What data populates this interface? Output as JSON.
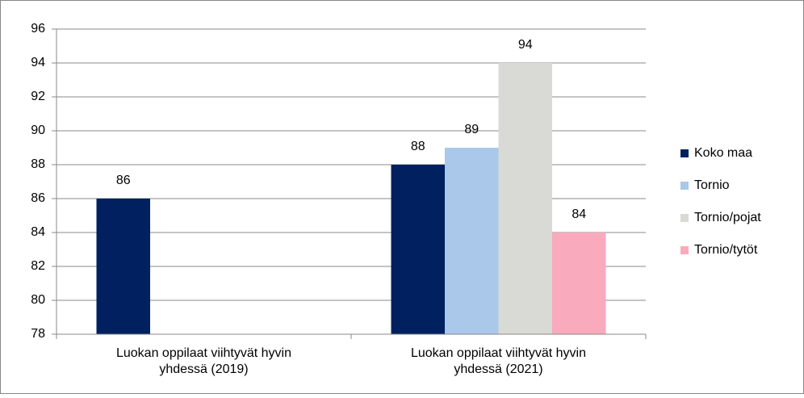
{
  "chart_data": {
    "type": "bar",
    "categories": [
      "Luokan oppilaat viihtyvät hyvin yhdessä (2019)",
      "Luokan oppilaat viihtyvät hyvin yhdessä (2021)"
    ],
    "series": [
      {
        "name": "Koko maa",
        "color": "#002060",
        "values": [
          86,
          88
        ]
      },
      {
        "name": "Tornio",
        "color": "#a9c8ea",
        "values": [
          null,
          89
        ]
      },
      {
        "name": "Tornio/pojat",
        "color": "#d9d9d5",
        "values": [
          null,
          94
        ]
      },
      {
        "name": "Tornio/tytöt",
        "color": "#f9aabd",
        "values": [
          null,
          84
        ]
      }
    ],
    "ylim": [
      78,
      96
    ],
    "yticks": [
      78,
      80,
      82,
      84,
      86,
      88,
      90,
      92,
      94,
      96
    ],
    "grid": true,
    "legend": "right"
  }
}
